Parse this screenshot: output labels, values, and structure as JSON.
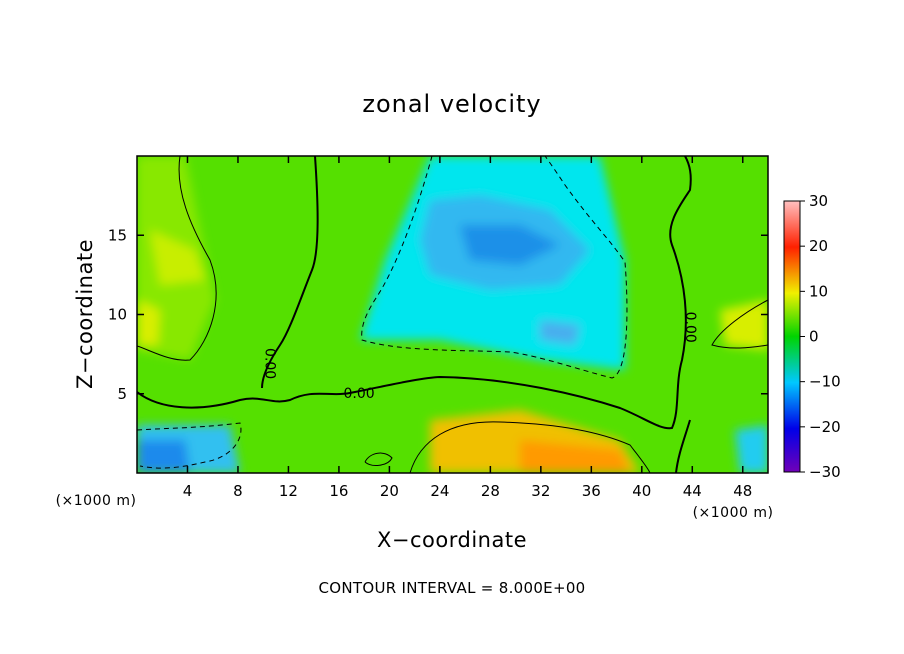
{
  "chart_data": {
    "type": "heatmap",
    "title": "zonal velocity",
    "xlabel": "X−coordinate",
    "ylabel": "Z−coordinate",
    "x_unit_label": "(×1000 m)",
    "z_unit_label": "(×1000 m)",
    "xlim": [
      0,
      50
    ],
    "ylim": [
      0,
      20
    ],
    "x_ticks": [
      4,
      8,
      12,
      16,
      20,
      24,
      28,
      32,
      36,
      40,
      44,
      48
    ],
    "y_ticks": [
      5,
      10,
      15
    ],
    "colorbar": {
      "min": -30,
      "max": 30,
      "ticks": [
        30,
        20,
        10,
        0,
        -10,
        -20,
        -30
      ],
      "tick_labels": [
        "30",
        "20",
        "10",
        "0",
        "−10",
        "−20",
        "−30"
      ]
    },
    "contour_interval_text": "CONTOUR INTERVAL = 8.000E+00",
    "contour_labels": [
      {
        "text": "0.00",
        "x": 10.5,
        "z": 6.9,
        "rotation": 90
      },
      {
        "text": "0.00",
        "x": 17.6,
        "z": 5.0,
        "rotation": 0
      },
      {
        "text": "0.00",
        "x": 43.8,
        "z": 9.2,
        "rotation": 90
      }
    ],
    "field_features": [
      {
        "kind": "max",
        "x": 34.5,
        "z": 1.2,
        "value": 12
      },
      {
        "kind": "max",
        "x": 29.5,
        "z": 2.8,
        "value": 8
      },
      {
        "kind": "max",
        "x": 2.5,
        "z": 14.5,
        "value": 9
      },
      {
        "kind": "max",
        "x": 0.5,
        "z": 9.5,
        "value": 8
      },
      {
        "kind": "max",
        "x": 49.5,
        "z": 9.5,
        "value": 8
      },
      {
        "kind": "min",
        "x": 29.5,
        "z": 14.2,
        "value": -14
      },
      {
        "kind": "min",
        "x": 33.5,
        "z": 8.8,
        "value": -10
      },
      {
        "kind": "min",
        "x": 1.5,
        "z": 1.2,
        "value": -12
      },
      {
        "kind": "min",
        "x": 48.5,
        "z": 1.5,
        "value": -10
      }
    ]
  }
}
